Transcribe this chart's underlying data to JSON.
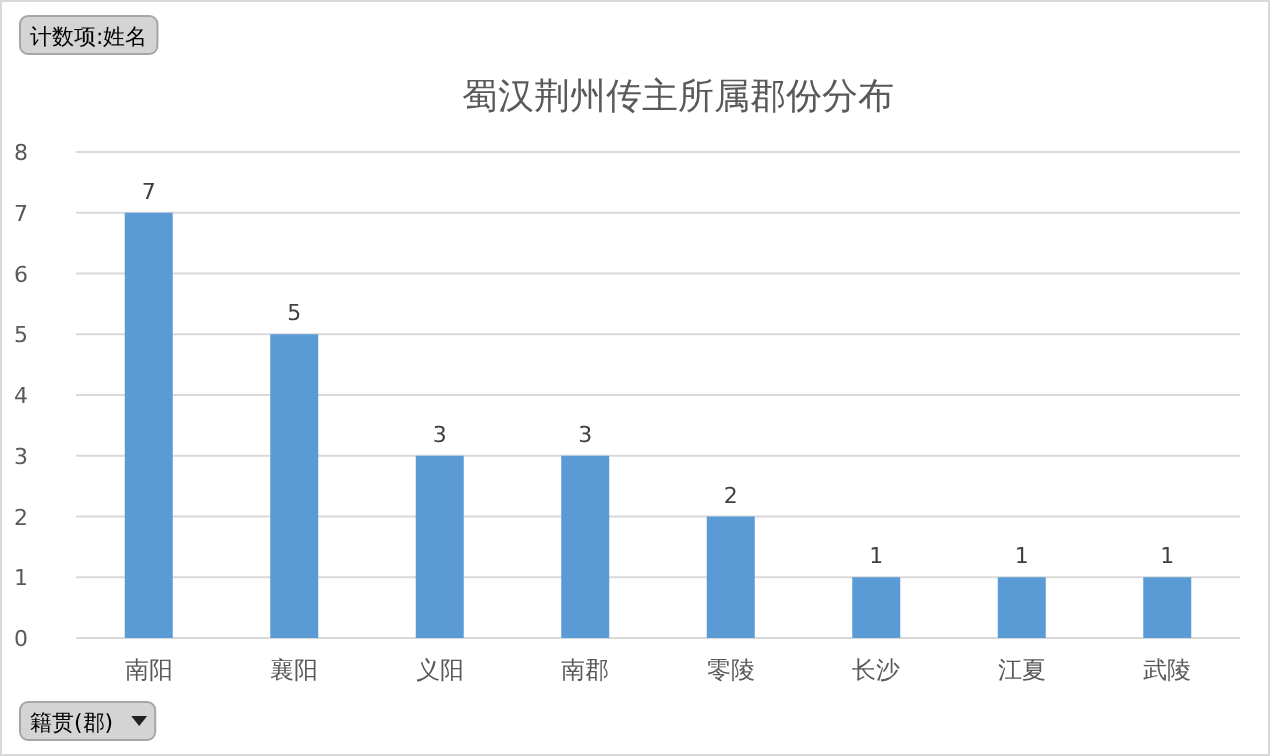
{
  "chart_data": {
    "type": "bar",
    "title": "蜀汉荆州传主所属郡份分布",
    "categories": [
      "南阳",
      "襄阳",
      "义阳",
      "南郡",
      "零陵",
      "长沙",
      "江夏",
      "武陵"
    ],
    "values": [
      7,
      5,
      3,
      3,
      2,
      1,
      1,
      1
    ],
    "color": "#5b9bd5",
    "ylim": [
      0,
      8
    ],
    "yticks": [
      0,
      1,
      2,
      3,
      4,
      5,
      6,
      7,
      8
    ],
    "grid": "y",
    "data_labels": true,
    "annotations": [
      "计数项:姓名",
      "籍贯(郡)"
    ]
  }
}
